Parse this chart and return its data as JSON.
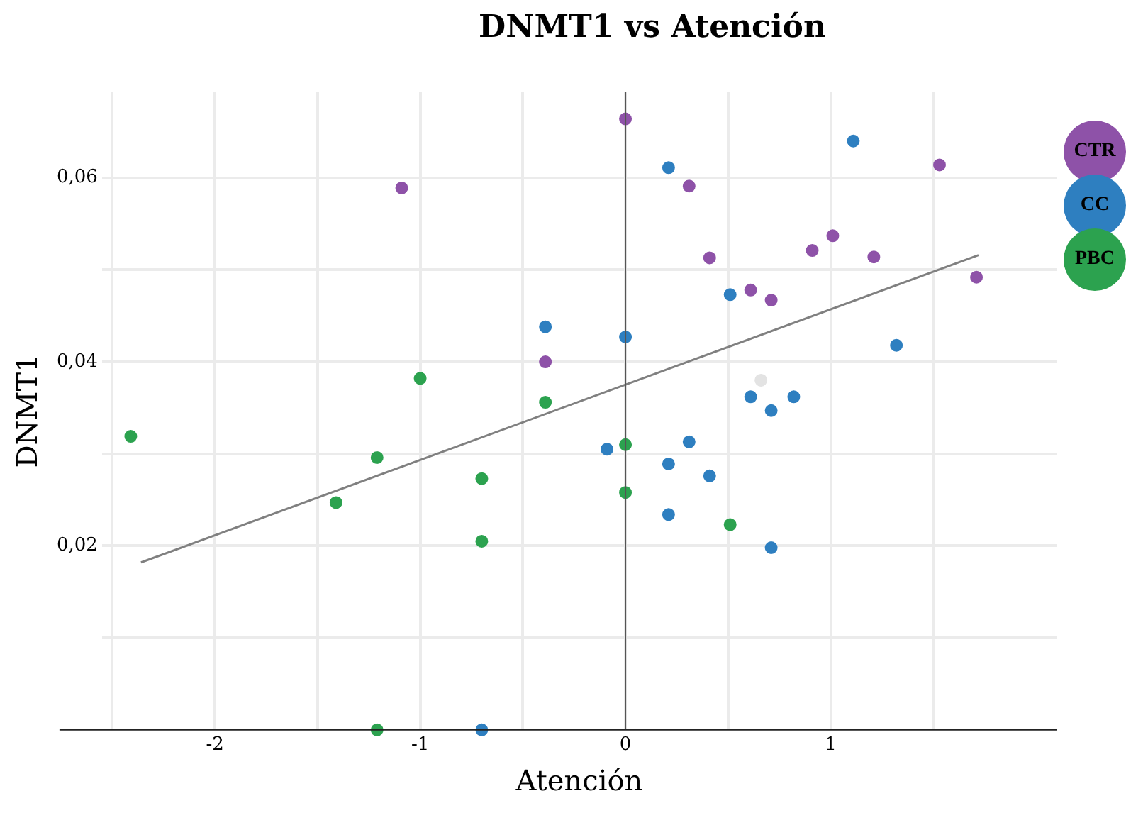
{
  "chart_data": {
    "type": "scatter",
    "title": "DNMT1 vs Atención",
    "xlabel": "Atención",
    "ylabel": "DNMT1",
    "xlim": [
      -2.55,
      2.1
    ],
    "ylim": [
      0,
      0.0693
    ],
    "xticks": [
      {
        "value": -2.5,
        "label": null
      },
      -2,
      {
        "value": -1.5,
        "label": null
      },
      -1,
      {
        "value": -0.5,
        "label": null
      },
      0,
      {
        "value": 0.5,
        "label": null
      },
      1,
      {
        "value": 1.5,
        "label": null
      }
    ],
    "yticks": [
      {
        "value": 0.01,
        "label": null
      },
      {
        "value": 0.02,
        "label": "0,02"
      },
      {
        "value": 0.03,
        "label": null
      },
      {
        "value": 0.04,
        "label": "0,04"
      },
      {
        "value": 0.05,
        "label": null
      },
      {
        "value": 0.06,
        "label": "0,06"
      }
    ],
    "grid": true,
    "legend": "right",
    "marker": "circle",
    "ref_lines": [
      {
        "axis": "x",
        "value": 0,
        "color": "#555555"
      }
    ],
    "series": [
      {
        "name": "CTR",
        "color": "#8e52a8",
        "x": [
          0,
          -1.09,
          0.31,
          1.53,
          0.41,
          0.91,
          1.01,
          1.21,
          0.61,
          0.71,
          1.71,
          -0.39
        ],
        "values": [
          0.0664,
          0.0589,
          0.0591,
          0.0614,
          0.0513,
          0.0521,
          0.0537,
          0.0514,
          0.0478,
          0.0467,
          0.0492,
          0.04
        ]
      },
      {
        "name": "CC",
        "color": "#2e7fc0",
        "x": [
          0.21,
          1.11,
          0.51,
          0,
          -0.39,
          1.32,
          0.61,
          0.82,
          0.71,
          -0.09,
          0.31,
          0.21,
          0.41,
          0.21,
          0.71,
          -0.7
        ],
        "values": [
          0.0611,
          0.064,
          0.0473,
          0.0427,
          0.0438,
          0.0418,
          0.0362,
          0.0362,
          0.0347,
          0.0305,
          0.0313,
          0.0289,
          0.0276,
          0.0234,
          0.0198,
          0
        ]
      },
      {
        "name": "PBC",
        "color": "#2ca24f",
        "x": [
          -2.41,
          -1.21,
          -1,
          -0.39,
          -1.41,
          -0.7,
          -0.7,
          0,
          0,
          0.51,
          -1.21
        ],
        "values": [
          0.0319,
          0.0296,
          0.0382,
          0.0356,
          0.0247,
          0.0273,
          0.0205,
          0.031,
          0.0258,
          0.0223,
          0
        ]
      },
      {
        "color": "#e3e3e3",
        "x": [
          0.66
        ],
        "values": [
          0.038
        ]
      },
      {
        "type": "line",
        "color": "#808080",
        "marker": "none",
        "x": [
          -2.36,
          1.72
        ],
        "values": [
          0.0182,
          0.0516
        ]
      }
    ]
  }
}
